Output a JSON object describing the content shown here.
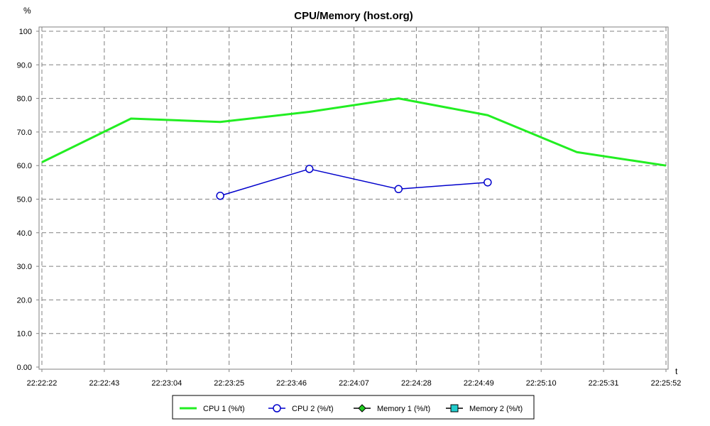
{
  "chart_data": {
    "type": "line",
    "title": "CPU/Memory (host.org)",
    "ylabel": "%",
    "xlabel": "t",
    "ylim": [
      0,
      100
    ],
    "xlim_seconds": [
      0,
      210
    ],
    "y_ticks": [
      "0.00",
      "10.0",
      "20.0",
      "30.0",
      "40.0",
      "50.0",
      "60.0",
      "70.0",
      "80.0",
      "90.0",
      "100"
    ],
    "x_ticks": [
      "22:22:22",
      "22:22:43",
      "22:23:04",
      "22:23:25",
      "22:23:46",
      "22:24:07",
      "22:24:28",
      "22:24:49",
      "22:25:10",
      "22:25:31",
      "22:25:52"
    ],
    "grid": true,
    "legend_position": "bottom",
    "series": [
      {
        "name": "CPU 1 (%/t)",
        "color": "#22ee22",
        "marker": "none",
        "x": [
          "22:22:22",
          "22:22:52",
          "22:23:22",
          "22:23:52",
          "22:24:22",
          "22:24:52",
          "22:25:22",
          "22:25:52"
        ],
        "y": [
          61,
          74,
          73,
          76,
          80,
          75,
          64,
          60
        ]
      },
      {
        "name": "CPU 2 (%/t)",
        "color": "#0000cc",
        "marker": "circle",
        "x": [
          "22:23:22",
          "22:23:52",
          "22:24:22",
          "22:24:52"
        ],
        "y": [
          51,
          59,
          53,
          55
        ]
      },
      {
        "name": "Memory 1 (%/t)",
        "color": "#22cc22",
        "marker": "diamond",
        "x": [],
        "y": []
      },
      {
        "name": "Memory 2 (%/t)",
        "color": "#22cccc",
        "marker": "square",
        "x": [],
        "y": []
      }
    ]
  }
}
